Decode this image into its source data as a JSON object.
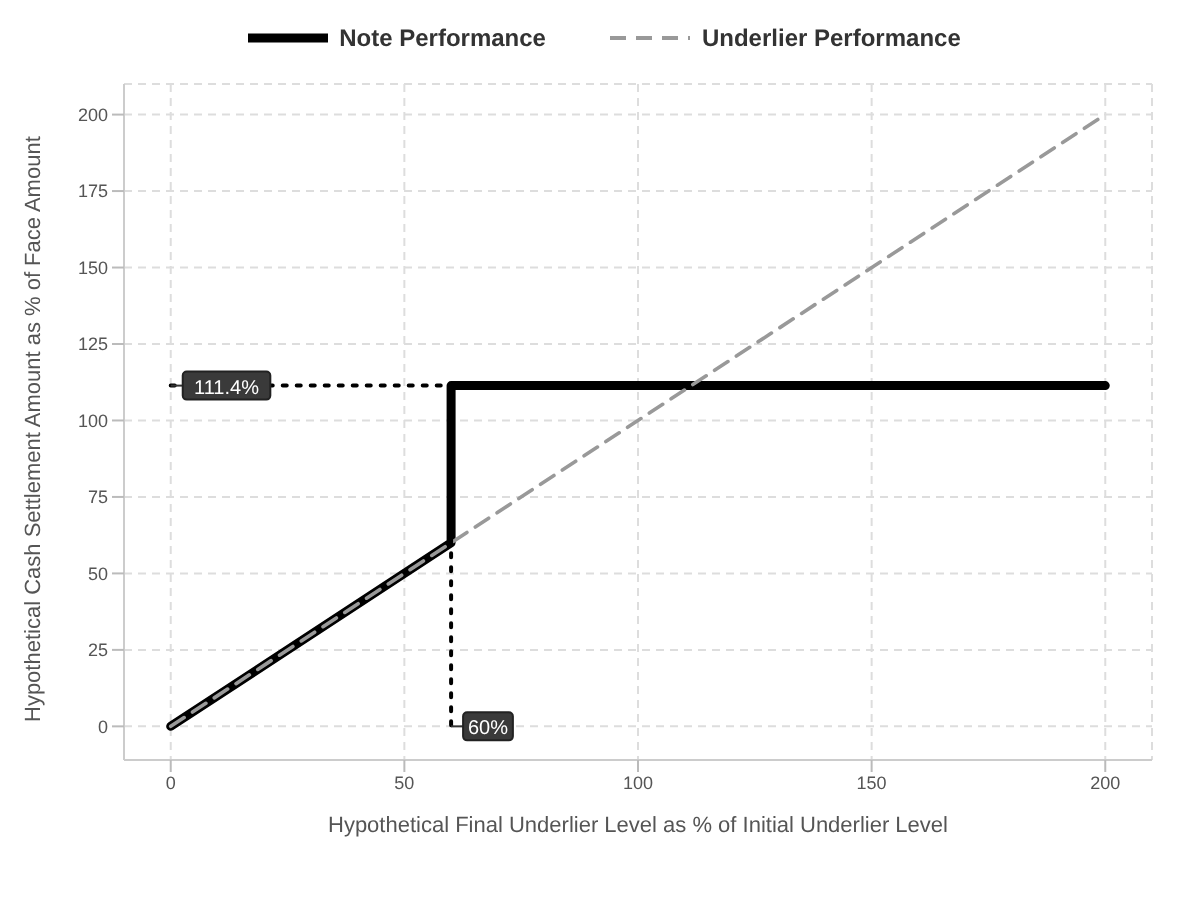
{
  "chart_data": {
    "type": "line",
    "xlabel": "Hypothetical Final Underlier Level as % of Initial Underlier Level",
    "ylabel": "Hypothetical Cash Settlement Amount as % of Face Amount",
    "xlim": [
      -10,
      210
    ],
    "ylim": [
      -11,
      210
    ],
    "xticks": [
      0,
      50,
      100,
      150,
      200
    ],
    "yticks": [
      0,
      25,
      50,
      75,
      100,
      125,
      150,
      175,
      200
    ],
    "grid": true,
    "legend": "top",
    "marker": "none",
    "series": [
      {
        "name": "Note Performance",
        "color": "#000000",
        "line_style": "solid",
        "x": [
          0,
          60,
          60,
          200
        ],
        "values": [
          0,
          60,
          111.4,
          111.4
        ]
      },
      {
        "name": "Underlier Performance",
        "color": "#999999",
        "line_style": "dashed",
        "x": [
          0,
          200
        ],
        "values": [
          0,
          200
        ]
      },
      {
        "color": "#000000",
        "line_style": "dotted",
        "x": [
          0,
          60,
          60
        ],
        "values": [
          111.4,
          111.4,
          0
        ]
      }
    ],
    "annotations": [
      {
        "text": "111.4%",
        "x": 0,
        "y": 111.4
      },
      {
        "text": "60%",
        "x": 60,
        "y": 0
      }
    ]
  }
}
